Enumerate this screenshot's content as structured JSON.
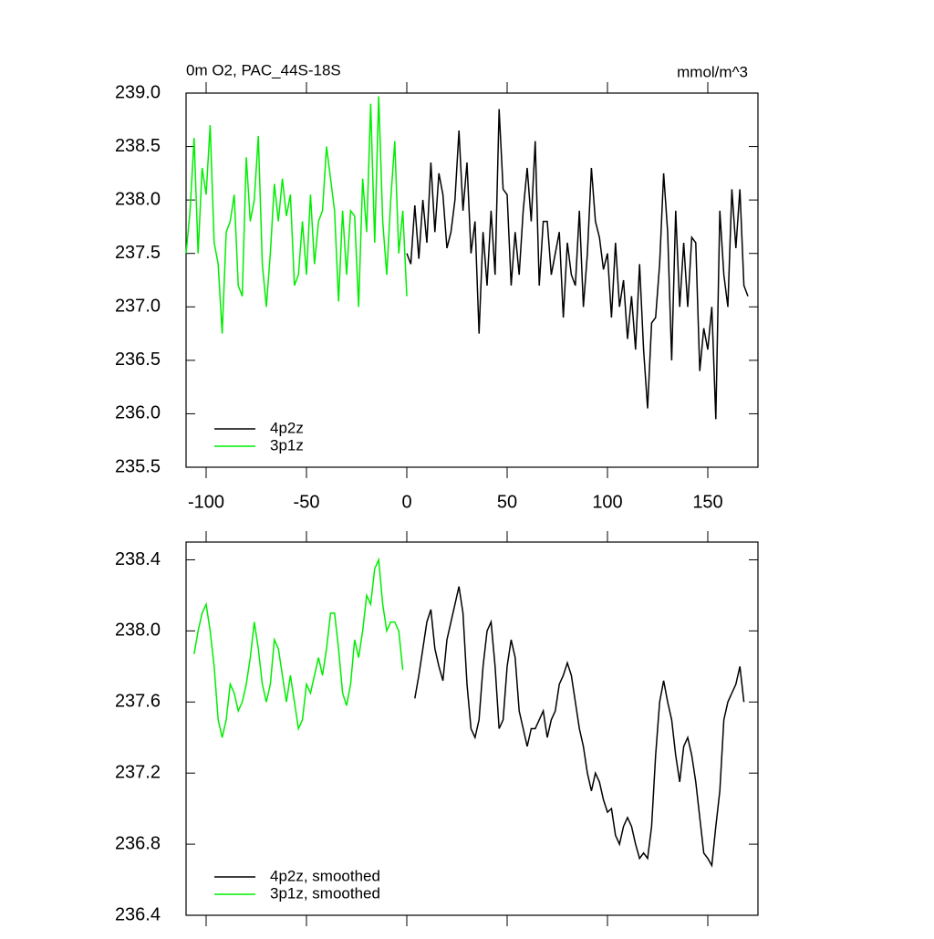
{
  "chart_data": [
    {
      "type": "line",
      "title": "0m O2, PAC_44S-18S",
      "units": "mmol/m^3",
      "xlim": [
        -110,
        175
      ],
      "xticks": [
        -100,
        -50,
        0,
        50,
        100,
        150
      ],
      "ylim": [
        235.5,
        239.0
      ],
      "yticks": [
        {
          "value": 235.5,
          "label": "235.5"
        },
        {
          "value": 236.0,
          "label": "236.0"
        },
        {
          "value": 236.5,
          "label": "236.5"
        },
        {
          "value": 237.0,
          "label": "237.0"
        },
        {
          "value": 237.5,
          "label": "237.5"
        },
        {
          "value": 238.0,
          "label": "238.0"
        },
        {
          "value": 238.5,
          "label": "238.5"
        },
        {
          "value": 239.0,
          "label": "239.0"
        }
      ],
      "legend": "lower left",
      "series": [
        {
          "name": "4p2z",
          "color": "#000000",
          "x": [
            0,
            2,
            4,
            6,
            8,
            10,
            12,
            14,
            16,
            18,
            20,
            22,
            24,
            26,
            28,
            30,
            32,
            34,
            36,
            38,
            40,
            42,
            44,
            46,
            48,
            50,
            52,
            54,
            56,
            58,
            60,
            62,
            64,
            66,
            68,
            70,
            72,
            74,
            76,
            78,
            80,
            82,
            84,
            86,
            88,
            90,
            92,
            94,
            96,
            98,
            100,
            102,
            104,
            106,
            108,
            110,
            112,
            114,
            116,
            118,
            120,
            122,
            124,
            126,
            128,
            130,
            132,
            134,
            136,
            138,
            140,
            142,
            144,
            146,
            148,
            150,
            152,
            154,
            156,
            158,
            160,
            162,
            164,
            166,
            168,
            170
          ],
          "values": [
            237.5,
            237.4,
            237.95,
            237.45,
            238.0,
            237.6,
            238.35,
            237.7,
            238.25,
            238.05,
            237.55,
            237.7,
            238.0,
            238.65,
            237.9,
            238.35,
            237.5,
            237.8,
            236.75,
            237.7,
            237.2,
            237.9,
            237.3,
            238.85,
            238.1,
            238.05,
            237.2,
            237.7,
            237.3,
            237.9,
            238.3,
            237.8,
            238.55,
            237.2,
            237.8,
            237.8,
            237.3,
            237.5,
            237.7,
            236.9,
            237.6,
            237.3,
            237.2,
            237.9,
            237.0,
            237.5,
            238.3,
            237.8,
            237.65,
            237.35,
            237.5,
            236.9,
            237.6,
            237.0,
            237.25,
            236.7,
            237.1,
            236.6,
            237.4,
            236.6,
            236.05,
            236.85,
            236.9,
            237.4,
            238.25,
            237.7,
            236.5,
            237.9,
            237.0,
            237.6,
            237.0,
            237.65,
            237.6,
            236.4,
            236.8,
            236.6,
            237.0,
            235.95,
            237.9,
            237.3,
            237.0,
            238.1,
            237.55,
            238.1,
            237.2,
            237.1
          ]
        },
        {
          "name": "3p1z",
          "color": "#00ee00",
          "x": [
            -110,
            -108,
            -106,
            -104,
            -102,
            -100,
            -98,
            -96,
            -94,
            -92,
            -90,
            -88,
            -86,
            -84,
            -82,
            -80,
            -78,
            -76,
            -74,
            -72,
            -70,
            -68,
            -66,
            -64,
            -62,
            -60,
            -58,
            -56,
            -54,
            -52,
            -50,
            -48,
            -46,
            -44,
            -42,
            -40,
            -38,
            -36,
            -34,
            -32,
            -30,
            -28,
            -26,
            -24,
            -22,
            -20,
            -18,
            -16,
            -14,
            -12,
            -10,
            -8,
            -6,
            -4,
            -2,
            0
          ],
          "values": [
            237.5,
            237.9,
            238.58,
            237.5,
            238.3,
            238.05,
            238.7,
            237.6,
            237.4,
            236.75,
            237.7,
            237.8,
            238.05,
            237.2,
            237.1,
            238.4,
            237.8,
            238.0,
            238.6,
            237.4,
            237.0,
            237.5,
            238.15,
            237.8,
            238.2,
            237.85,
            238.05,
            237.2,
            237.3,
            237.8,
            237.3,
            238.05,
            237.4,
            237.8,
            237.9,
            238.5,
            238.2,
            237.9,
            237.05,
            237.9,
            237.3,
            237.9,
            237.85,
            237.0,
            238.2,
            237.7,
            238.9,
            237.6,
            238.97,
            237.8,
            237.3,
            238.0,
            238.55,
            237.5,
            237.9,
            237.1
          ]
        }
      ]
    },
    {
      "type": "line",
      "xlim": [
        -110,
        175
      ],
      "ylim": [
        236.4,
        238.5
      ],
      "yticks": [
        {
          "value": 236.4,
          "label": "236.4"
        },
        {
          "value": 236.8,
          "label": "236.8"
        },
        {
          "value": 237.2,
          "label": "237.2"
        },
        {
          "value": 237.6,
          "label": "237.6"
        },
        {
          "value": 238.0,
          "label": "238.0"
        },
        {
          "value": 238.4,
          "label": "238.4"
        }
      ],
      "legend": "lower left",
      "series": [
        {
          "name": "4p2z, smoothed",
          "color": "#000000",
          "x": [
            4,
            6,
            8,
            10,
            12,
            14,
            16,
            18,
            20,
            22,
            24,
            26,
            28,
            30,
            32,
            34,
            36,
            38,
            40,
            42,
            44,
            46,
            48,
            50,
            52,
            54,
            56,
            58,
            60,
            62,
            64,
            66,
            68,
            70,
            72,
            74,
            76,
            78,
            80,
            82,
            84,
            86,
            88,
            90,
            92,
            94,
            96,
            98,
            100,
            102,
            104,
            106,
            108,
            110,
            112,
            114,
            116,
            118,
            120,
            122,
            124,
            126,
            128,
            130,
            132,
            134,
            136,
            138,
            140,
            142,
            144,
            146,
            148,
            150,
            152,
            154,
            156,
            158,
            160,
            162,
            164,
            166,
            168
          ],
          "values": [
            237.62,
            237.75,
            237.9,
            238.05,
            238.12,
            237.9,
            237.8,
            237.72,
            237.95,
            238.05,
            238.15,
            238.25,
            238.1,
            237.7,
            237.45,
            237.4,
            237.5,
            237.8,
            238.0,
            238.05,
            237.8,
            237.45,
            237.5,
            237.8,
            237.95,
            237.85,
            237.55,
            237.45,
            237.35,
            237.45,
            237.45,
            237.5,
            237.55,
            237.4,
            237.5,
            237.55,
            237.7,
            237.75,
            237.82,
            237.75,
            237.6,
            237.45,
            237.35,
            237.2,
            237.1,
            237.2,
            237.15,
            237.05,
            236.98,
            237.0,
            236.85,
            236.8,
            236.9,
            236.95,
            236.9,
            236.8,
            236.72,
            236.75,
            236.72,
            236.9,
            237.3,
            237.6,
            237.72,
            237.6,
            237.5,
            237.3,
            237.15,
            237.35,
            237.4,
            237.3,
            237.15,
            236.95,
            236.75,
            236.72,
            236.68,
            236.9,
            237.1,
            237.5,
            237.6,
            237.65,
            237.7,
            237.8,
            237.6
          ]
        },
        {
          "name": "3p1z, smoothed",
          "color": "#00ee00",
          "x": [
            -106,
            -104,
            -102,
            -100,
            -98,
            -96,
            -94,
            -92,
            -90,
            -88,
            -86,
            -84,
            -82,
            -80,
            -78,
            -76,
            -74,
            -72,
            -70,
            -68,
            -66,
            -64,
            -62,
            -60,
            -58,
            -56,
            -54,
            -52,
            -50,
            -48,
            -46,
            -44,
            -42,
            -40,
            -38,
            -36,
            -34,
            -32,
            -30,
            -28,
            -26,
            -24,
            -22,
            -20,
            -18,
            -16,
            -14,
            -12,
            -10,
            -8,
            -6,
            -4,
            -2
          ],
          "values": [
            237.87,
            238.0,
            238.1,
            238.15,
            238.0,
            237.8,
            237.5,
            237.4,
            237.5,
            237.7,
            237.65,
            237.55,
            237.6,
            237.7,
            237.85,
            238.05,
            237.9,
            237.7,
            237.6,
            237.7,
            237.95,
            237.9,
            237.75,
            237.6,
            237.75,
            237.6,
            237.45,
            237.5,
            237.7,
            237.65,
            237.75,
            237.85,
            237.75,
            237.9,
            238.1,
            238.1,
            237.9,
            237.65,
            237.58,
            237.7,
            237.95,
            237.85,
            238.0,
            238.2,
            238.15,
            238.35,
            238.4,
            238.15,
            238.0,
            238.05,
            238.05,
            238.0,
            237.78
          ]
        }
      ]
    }
  ]
}
